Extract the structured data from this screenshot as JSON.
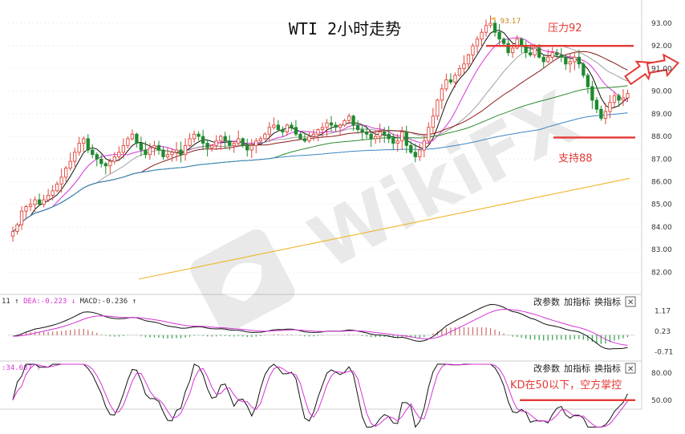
{
  "chart_data": [
    {
      "type": "candlestick",
      "title": "WTI 2小时走势",
      "y_ticks": [
        "93.00",
        "92.00",
        "91.00",
        "90.00",
        "89.00",
        "88.00",
        "87.00",
        "86.00",
        "85.00",
        "84.00",
        "83.00",
        "82.00"
      ],
      "ylim": [
        81.2,
        93.6
      ],
      "price_path": [
        83.8,
        84.1,
        84.7,
        84.9,
        85.0,
        85.2,
        85.0,
        85.2,
        85.4,
        85.6,
        85.9,
        86.2,
        86.6,
        86.9,
        87.3,
        87.7,
        87.9,
        87.4,
        87.2,
        87.0,
        86.8,
        86.7,
        86.9,
        87.1,
        87.3,
        87.6,
        87.9,
        88.1,
        87.7,
        87.4,
        87.2,
        87.5,
        87.6,
        87.4,
        87.1,
        87.2,
        87.3,
        87.4,
        87.2,
        87.6,
        87.9,
        88.1,
        88.0,
        87.7,
        87.5,
        87.6,
        87.8,
        88.0,
        87.8,
        87.6,
        87.7,
        87.9,
        87.6,
        87.4,
        87.6,
        87.8,
        87.9,
        88.1,
        88.4,
        88.5,
        88.3,
        88.2,
        88.5,
        88.4,
        88.1,
        87.9,
        87.8,
        88.0,
        88.1,
        88.3,
        88.4,
        88.6,
        88.5,
        88.4,
        88.5,
        88.7,
        88.9,
        88.5,
        88.3,
        88.2,
        88.1,
        87.9,
        88.0,
        88.2,
        88.1,
        87.9,
        87.7,
        87.8,
        88.2,
        87.6,
        87.3,
        87.1,
        87.4,
        87.8,
        88.4,
        88.9,
        89.6,
        90.1,
        90.5,
        90.4,
        90.7,
        91.0,
        91.2,
        91.6,
        92.0,
        92.3,
        92.6,
        92.9,
        93.0,
        92.6,
        92.3,
        92.1,
        91.7,
        91.9,
        92.3,
        92.0,
        91.7,
        91.6,
        91.9,
        91.5,
        91.3,
        91.5,
        91.7,
        91.6,
        91.5,
        91.2,
        91.3,
        91.5,
        91.2,
        90.7,
        90.2,
        89.6,
        89.2,
        88.8,
        89.1,
        89.5,
        89.8,
        89.6,
        89.7,
        89.9
      ],
      "high_label": "93.17",
      "annotations": [
        {
          "text": "压力92",
          "y": 92.0,
          "color": "#e53935"
        },
        {
          "text": "支持88",
          "y": 87.95,
          "color": "#e53935"
        }
      ],
      "arrow_labels": []
    },
    {
      "type": "macd",
      "legend": {
        "prefix": "11",
        "dea": "DEA:-0.223",
        "macd": "MACD:-0.236"
      },
      "y_ticks": [
        "1.17",
        "0.23",
        "-0.71"
      ]
    },
    {
      "type": "kd",
      "legend": {
        "prefix": ":34.687"
      },
      "y_ticks": [
        "80.00",
        "50.00"
      ],
      "annotation": "KD在50以下，空方掌控"
    }
  ],
  "toolbar": {
    "macd": [
      "改参数",
      "加指标",
      "换指标"
    ],
    "kd": [
      "改参数",
      "加指标",
      "换指标"
    ],
    "close_label": "✕"
  },
  "watermark": "WikiFX",
  "colors": {
    "up": "#e0463c",
    "down": "#1e8b2e",
    "resistance_line": "#e53935",
    "ma_green": "#2e8b2e",
    "ma_blue": "#3d85c6",
    "ma_orange": "#f0b429",
    "ma_magenta": "#d633d6",
    "ma_darkred": "#8b1a1a",
    "macd_red_bar": "#d06a6a",
    "macd_green_bar": "#2f9e44"
  }
}
